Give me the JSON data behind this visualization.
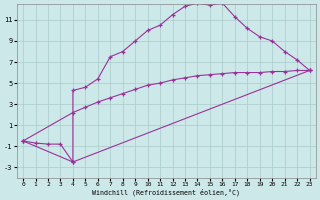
{
  "xlabel": "Windchill (Refroidissement éolien,°C)",
  "bg_color": "#cce8e8",
  "grid_color": "#aacccc",
  "line_color": "#993399",
  "xlim": [
    -0.5,
    23.5
  ],
  "ylim": [
    -4,
    12.5
  ],
  "xticks": [
    0,
    1,
    2,
    3,
    4,
    5,
    6,
    7,
    8,
    9,
    10,
    11,
    12,
    13,
    14,
    15,
    16,
    17,
    18,
    19,
    20,
    21,
    22,
    23
  ],
  "yticks": [
    -3,
    -1,
    1,
    3,
    5,
    7,
    9,
    11
  ],
  "line1_x": [
    0,
    1,
    2,
    3,
    4,
    4,
    5,
    6,
    7,
    8,
    9,
    10,
    11,
    12,
    13,
    14,
    15,
    16,
    17,
    18,
    19,
    20,
    21,
    22,
    23
  ],
  "line1_y": [
    -0.5,
    -0.7,
    -0.8,
    -0.8,
    -2.5,
    4.3,
    4.6,
    5.4,
    7.5,
    8.0,
    9.0,
    10.0,
    10.5,
    11.5,
    12.3,
    12.6,
    12.4,
    12.6,
    11.3,
    10.2,
    9.4,
    9.0,
    8.0,
    7.2,
    6.2
  ],
  "line2_x": [
    0,
    4,
    23
  ],
  "line2_y": [
    -0.5,
    -2.5,
    6.2
  ],
  "line3_x": [
    0,
    4,
    5,
    6,
    7,
    8,
    9,
    10,
    11,
    12,
    13,
    14,
    15,
    16,
    17,
    18,
    19,
    20,
    21,
    22,
    23
  ],
  "line3_y": [
    -0.5,
    2.2,
    2.7,
    3.2,
    3.6,
    4.0,
    4.4,
    4.8,
    5.0,
    5.3,
    5.5,
    5.7,
    5.8,
    5.9,
    6.0,
    6.0,
    6.0,
    6.1,
    6.1,
    6.2,
    6.2
  ]
}
